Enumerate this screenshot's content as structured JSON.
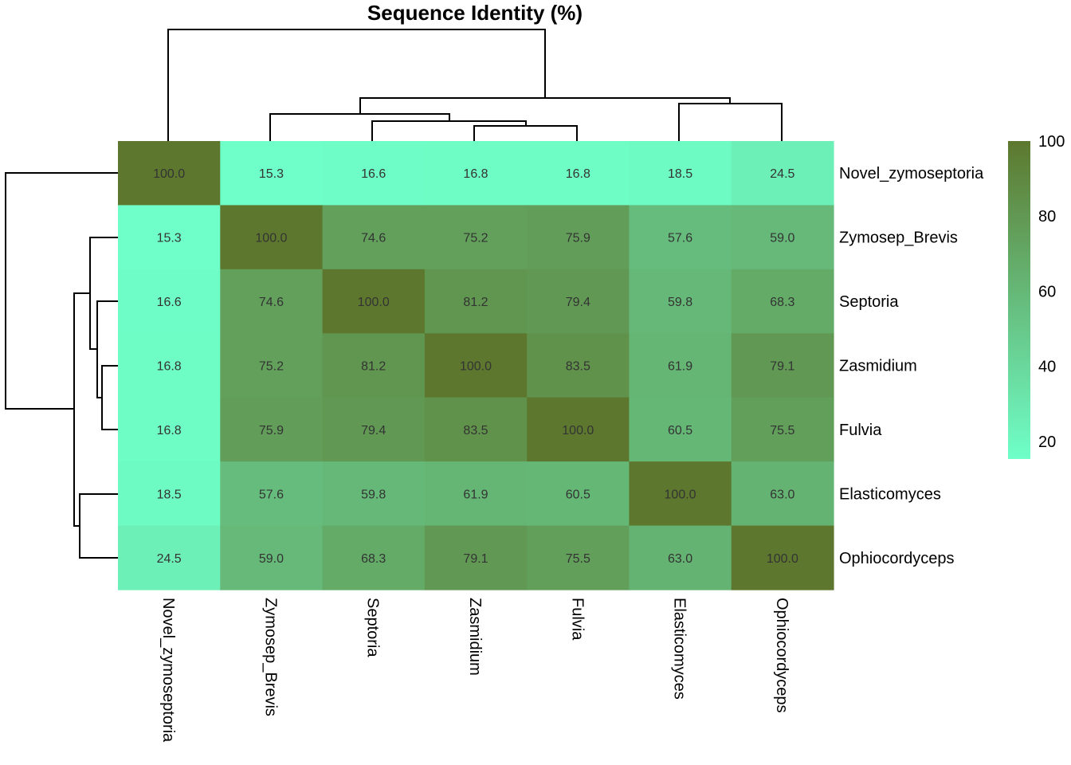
{
  "chart_data": {
    "type": "heatmap",
    "title": "Sequence Identity (%)",
    "rows": [
      "Novel_zymoseptoria",
      "Zymosep_Brevis",
      "Septoria",
      "Zasmidium",
      "Fulvia",
      "Elasticomyces",
      "Ophiocordyceps"
    ],
    "columns": [
      "Novel_zymoseptoria",
      "Zymosep_Brevis",
      "Septoria",
      "Zasmidium",
      "Fulvia",
      "Elasticomyces",
      "Ophiocordyceps"
    ],
    "values": [
      [
        100.0,
        15.3,
        16.6,
        16.8,
        16.8,
        18.5,
        24.5
      ],
      [
        15.3,
        100.0,
        74.6,
        75.2,
        75.9,
        57.6,
        59.0
      ],
      [
        16.6,
        74.6,
        100.0,
        81.2,
        79.4,
        59.8,
        68.3
      ],
      [
        16.8,
        75.2,
        81.2,
        100.0,
        83.5,
        61.9,
        79.1
      ],
      [
        16.8,
        75.9,
        79.4,
        83.5,
        100.0,
        60.5,
        75.5
      ],
      [
        18.5,
        57.6,
        59.8,
        61.9,
        60.5,
        100.0,
        63.0
      ],
      [
        24.5,
        59.0,
        68.3,
        79.1,
        75.5,
        63.0,
        100.0
      ]
    ],
    "value_labels": [
      [
        "100.0",
        "15.3",
        "16.6",
        "16.8",
        "16.8",
        "18.5",
        "24.5"
      ],
      [
        "15.3",
        "100.0",
        "74.6",
        "75.2",
        "75.9",
        "57.6",
        "59.0"
      ],
      [
        "16.6",
        "74.6",
        "100.0",
        "81.2",
        "79.4",
        "59.8",
        "68.3"
      ],
      [
        "16.8",
        "75.2",
        "81.2",
        "100.0",
        "83.5",
        "61.9",
        "79.1"
      ],
      [
        "16.8",
        "75.9",
        "79.4",
        "83.5",
        "100.0",
        "60.5",
        "75.5"
      ],
      [
        "18.5",
        "57.6",
        "59.8",
        "61.9",
        "60.5",
        "100.0",
        "63.0"
      ],
      [
        "24.5",
        "59.0",
        "68.3",
        "79.1",
        "75.5",
        "63.0",
        "100.0"
      ]
    ],
    "color_scale": {
      "low": "#6fffc9",
      "high": "#5d782e",
      "range": [
        15.3,
        100
      ]
    },
    "legend": {
      "position": "right",
      "ticks": [
        100,
        80,
        60,
        40,
        20
      ]
    },
    "dendrograms": {
      "rows": true,
      "columns": true
    }
  }
}
